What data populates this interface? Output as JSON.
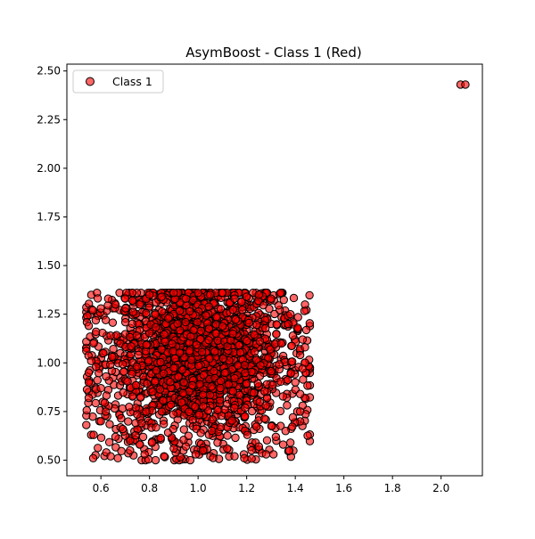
{
  "chart_data": {
    "type": "scatter",
    "title": "AsymBoost - Class 1 (Red)",
    "xlabel": "",
    "ylabel": "",
    "xlim": [
      0.46,
      2.17
    ],
    "ylim": [
      0.42,
      2.535
    ],
    "x_ticks": [
      0.6,
      0.8,
      1.0,
      1.2,
      1.4,
      1.6,
      1.8,
      2.0
    ],
    "x_tick_labels": [
      "0.6",
      "0.8",
      "1.0",
      "1.2",
      "1.4",
      "1.6",
      "1.8",
      "2.0"
    ],
    "y_ticks": [
      0.5,
      0.75,
      1.0,
      1.25,
      1.5,
      1.75,
      2.0,
      2.25,
      2.5
    ],
    "y_tick_labels": [
      "0.50",
      "0.75",
      "1.00",
      "1.25",
      "1.50",
      "1.75",
      "2.00",
      "2.25",
      "2.50"
    ],
    "grid": false,
    "legend": {
      "position": "top-left",
      "entries": [
        "Class 1"
      ]
    },
    "series": [
      {
        "name": "Class 1",
        "color": "#ff0000",
        "edge_color": "#000000",
        "alpha": 0.6,
        "cluster": {
          "description_x_range": [
            0.54,
            1.46
          ],
          "description_y_range": [
            0.5,
            1.36
          ],
          "dense_core_x": [
            0.75,
            1.25
          ],
          "dense_core_y": [
            0.7,
            1.32
          ]
        },
        "points": [
          [
            2.08,
            2.43
          ],
          [
            2.1,
            2.43
          ],
          [
            0.56,
            0.63
          ],
          [
            0.57,
            0.63
          ],
          [
            0.55,
            0.82
          ],
          [
            0.55,
            0.9
          ],
          [
            0.55,
            0.95
          ],
          [
            0.56,
            1.01
          ],
          [
            0.57,
            1.1
          ],
          [
            0.58,
            1.16
          ],
          [
            0.55,
            1.19
          ],
          [
            0.6,
            1.28
          ],
          [
            0.63,
            1.33
          ],
          [
            0.66,
            1.3
          ],
          [
            0.7,
            1.33
          ],
          [
            0.73,
            1.32
          ],
          [
            0.64,
            0.52
          ],
          [
            0.67,
            0.51
          ],
          [
            0.72,
            0.55
          ],
          [
            0.76,
            0.58
          ],
          [
            0.78,
            0.53
          ],
          [
            0.81,
            0.59
          ],
          [
            0.86,
            0.52
          ],
          [
            0.9,
            0.56
          ],
          [
            0.95,
            0.57
          ],
          [
            0.99,
            0.53
          ],
          [
            1.02,
            0.55
          ],
          [
            1.08,
            0.59
          ],
          [
            1.12,
            0.56
          ],
          [
            1.15,
            0.52
          ],
          [
            1.19,
            0.51
          ],
          [
            1.22,
            0.55
          ],
          [
            1.25,
            0.57
          ],
          [
            1.28,
            0.53
          ],
          [
            1.31,
            0.53
          ],
          [
            1.35,
            0.58
          ],
          [
            1.38,
            0.59
          ],
          [
            1.36,
            0.65
          ],
          [
            1.43,
            0.78
          ],
          [
            1.42,
            0.84
          ],
          [
            1.43,
            0.97
          ],
          [
            1.42,
            1.04
          ],
          [
            1.44,
            1.08
          ],
          [
            1.44,
            1.3
          ],
          [
            1.41,
            1.18
          ],
          [
            1.38,
            1.25
          ],
          [
            1.34,
            1.36
          ],
          [
            1.3,
            1.33
          ],
          [
            1.25,
            1.35
          ],
          [
            1.2,
            1.34
          ],
          [
            1.15,
            1.33
          ],
          [
            1.1,
            1.36
          ],
          [
            1.05,
            1.35
          ],
          [
            1.0,
            1.36
          ],
          [
            0.95,
            1.33
          ],
          [
            0.9,
            1.36
          ],
          [
            0.85,
            1.34
          ],
          [
            0.8,
            1.35
          ],
          [
            0.76,
            1.3
          ],
          [
            0.6,
            0.7
          ],
          [
            0.62,
            0.75
          ],
          [
            0.6,
            0.87
          ],
          [
            0.58,
            0.98
          ],
          [
            0.61,
            1.05
          ],
          [
            0.64,
            1.14
          ],
          [
            0.62,
            1.22
          ],
          [
            0.66,
            0.62
          ],
          [
            0.69,
            0.66
          ],
          [
            0.72,
            0.6
          ],
          [
            1.32,
            0.62
          ],
          [
            1.39,
            0.72
          ],
          [
            1.4,
            0.9
          ],
          [
            1.39,
            1.14
          ],
          [
            1.37,
            1.2
          ],
          [
            1.42,
            0.75
          ],
          [
            1.43,
            1.12
          ]
        ]
      }
    ]
  }
}
